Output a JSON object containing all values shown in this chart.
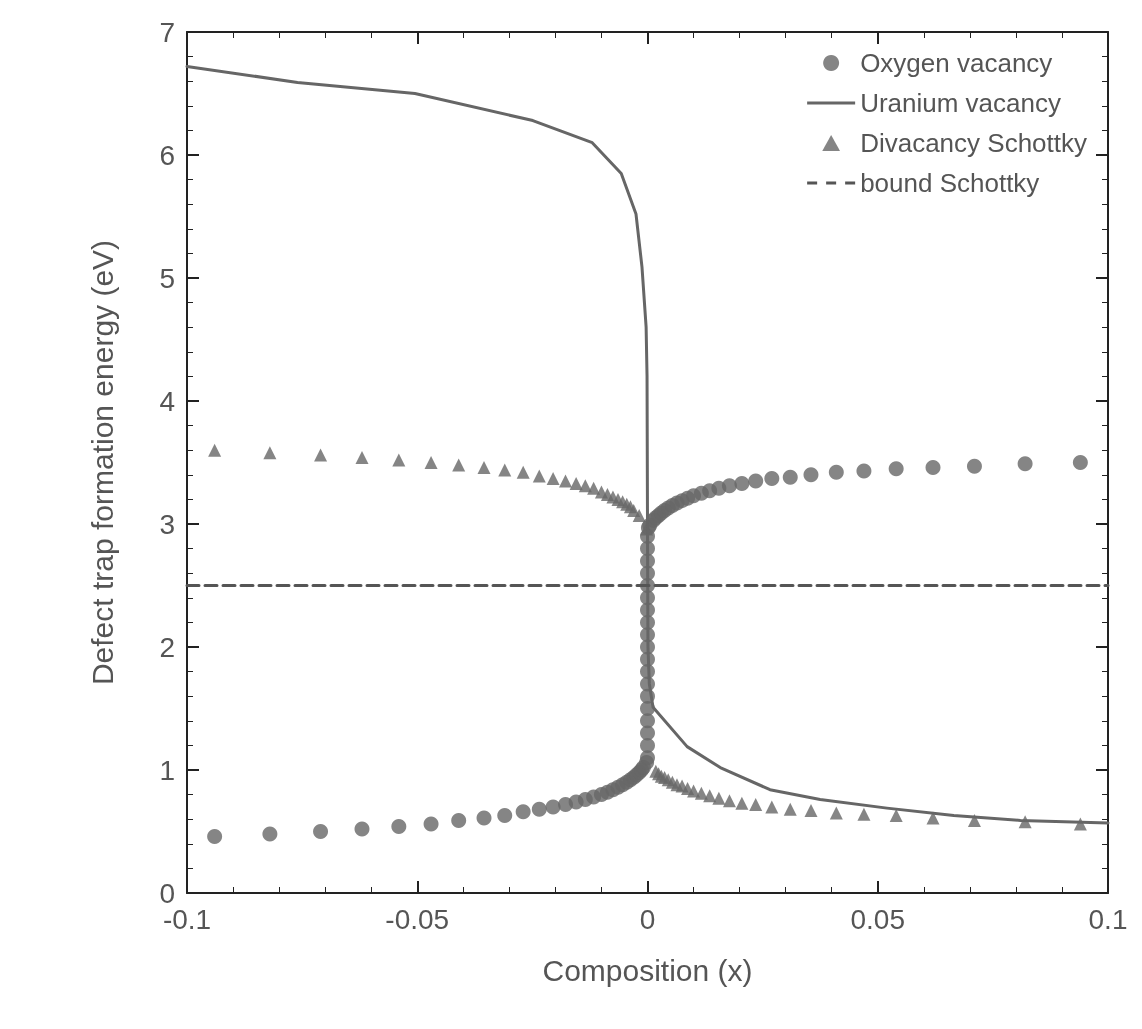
{
  "chart_data": {
    "type": "scatter",
    "xlabel": "Composition (x)",
    "ylabel": "Defect trap formation energy (eV)",
    "xlim": [
      -0.1,
      0.1
    ],
    "xticks": [
      -0.1,
      -0.05,
      0,
      0.05,
      0.1
    ],
    "ylim": [
      0,
      7
    ],
    "yticks": [
      0,
      1,
      2,
      3,
      4,
      5,
      6,
      7
    ],
    "grid": false,
    "legend": "top right",
    "series": [
      {
        "name": "Oxygen vacancy",
        "marker": "circle",
        "color": "#666666",
        "x": [
          -0.094,
          -0.082,
          -0.071,
          -0.062,
          -0.054,
          -0.047,
          -0.041,
          -0.0355,
          -0.031,
          -0.027,
          -0.0235,
          -0.0205,
          -0.0178,
          -0.0155,
          -0.0135,
          -0.0117,
          -0.01,
          -0.0087,
          -0.0075,
          -0.0064,
          -0.0054,
          -0.0045,
          -0.0037,
          -0.003,
          -0.0024,
          -0.0018,
          -0.0013,
          -0.0009,
          -0.0002,
          0,
          0,
          0,
          0,
          0,
          0,
          0,
          0,
          0,
          0,
          0,
          0,
          0,
          0,
          0,
          0,
          0,
          0,
          0,
          0.0002,
          0.0005,
          0.0013,
          0.0018,
          0.0024,
          0.003,
          0.0037,
          0.0045,
          0.0054,
          0.0064,
          0.0075,
          0.0087,
          0.01,
          0.0117,
          0.0135,
          0.0155,
          0.0178,
          0.0205,
          0.0235,
          0.027,
          0.031,
          0.0355,
          0.041,
          0.047,
          0.054,
          0.062,
          0.071,
          0.082,
          0.094
        ],
        "values": [
          0.46,
          0.48,
          0.5,
          0.52,
          0.54,
          0.56,
          0.59,
          0.61,
          0.63,
          0.66,
          0.68,
          0.7,
          0.72,
          0.74,
          0.76,
          0.78,
          0.8,
          0.82,
          0.84,
          0.86,
          0.88,
          0.9,
          0.92,
          0.94,
          0.96,
          0.98,
          1.0,
          1.02,
          1.06,
          1.1,
          1.2,
          1.3,
          1.4,
          1.5,
          1.6,
          1.7,
          1.8,
          1.9,
          2.0,
          2.1,
          2.2,
          2.3,
          2.4,
          2.5,
          2.6,
          2.7,
          2.8,
          2.9,
          2.97,
          2.99,
          3.03,
          3.05,
          3.07,
          3.09,
          3.11,
          3.13,
          3.15,
          3.17,
          3.19,
          3.21,
          3.23,
          3.25,
          3.27,
          3.29,
          3.31,
          3.33,
          3.35,
          3.37,
          3.38,
          3.4,
          3.42,
          3.43,
          3.45,
          3.46,
          3.47,
          3.49,
          3.5
        ]
      },
      {
        "name": "Uranium vacancy",
        "type": "line",
        "marker": "none",
        "line_style": "solid",
        "color": "#666666",
        "x": [
          -0.1,
          -0.076,
          -0.0505,
          -0.0249,
          -0.012,
          -0.0057,
          -0.0025,
          -0.0012,
          -0.0003,
          -0.0001,
          0,
          0.0001,
          0.0004,
          0.0012,
          0.0086,
          0.0158,
          0.0266,
          0.0375,
          0.052,
          0.0665,
          0.081,
          0.1
        ],
        "values": [
          6.72,
          6.59,
          6.5,
          6.28,
          6.1,
          5.85,
          5.52,
          5.09,
          4.6,
          4.2,
          3.0,
          2.0,
          1.7,
          1.51,
          1.19,
          1.02,
          0.84,
          0.76,
          0.69,
          0.63,
          0.59,
          0.57
        ]
      },
      {
        "name": "Divacancy Schottky",
        "marker": "triangle",
        "color": "#666666",
        "x": [
          -0.094,
          -0.082,
          -0.071,
          -0.062,
          -0.054,
          -0.047,
          -0.041,
          -0.0355,
          -0.031,
          -0.027,
          -0.0235,
          -0.0205,
          -0.0178,
          -0.0155,
          -0.0135,
          -0.0117,
          -0.01,
          -0.0087,
          -0.0075,
          -0.0064,
          -0.0054,
          -0.0045,
          -0.0037,
          -0.003,
          -0.0018,
          -0.0002,
          0.0018,
          0.0024,
          0.003,
          0.0037,
          0.0045,
          0.0054,
          0.0064,
          0.0075,
          0.0087,
          0.01,
          0.0117,
          0.0135,
          0.0155,
          0.0178,
          0.0205,
          0.0235,
          0.027,
          0.031,
          0.0355,
          0.041,
          0.047,
          0.054,
          0.062,
          0.071,
          0.082,
          0.094
        ],
        "values": [
          3.6,
          3.58,
          3.56,
          3.54,
          3.52,
          3.5,
          3.48,
          3.46,
          3.44,
          3.42,
          3.39,
          3.37,
          3.35,
          3.33,
          3.31,
          3.29,
          3.26,
          3.24,
          3.22,
          3.2,
          3.18,
          3.16,
          3.14,
          3.11,
          3.07,
          2.96,
          0.99,
          0.97,
          0.95,
          0.94,
          0.92,
          0.9,
          0.88,
          0.87,
          0.85,
          0.83,
          0.81,
          0.79,
          0.77,
          0.75,
          0.73,
          0.72,
          0.7,
          0.68,
          0.67,
          0.65,
          0.64,
          0.63,
          0.61,
          0.59,
          0.58,
          0.56
        ]
      },
      {
        "name": "bound Schottky",
        "type": "line",
        "marker": "none",
        "line_style": "dashed",
        "color": "#555555",
        "x": [
          -0.1,
          0.1
        ],
        "values": [
          2.5,
          2.5
        ]
      }
    ]
  }
}
